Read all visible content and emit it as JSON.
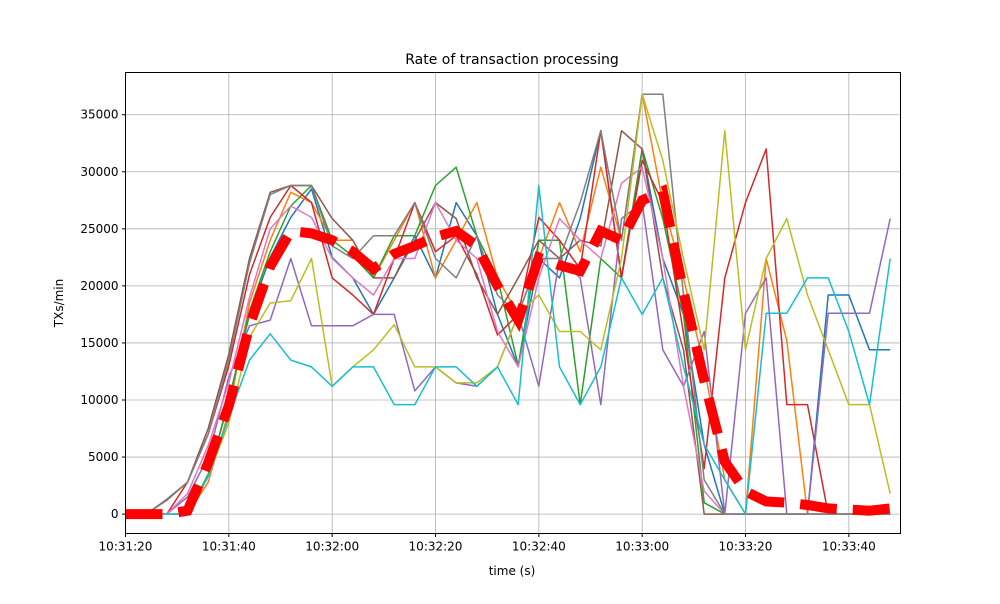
{
  "chart_data": {
    "type": "line",
    "title": "Rate of transaction processing",
    "xlabel": "time (s)",
    "ylabel": "TXs/min",
    "x_start": "10:31:20",
    "x_tick_labels": [
      "10:31:20",
      "10:31:40",
      "10:32:00",
      "10:32:20",
      "10:32:40",
      "10:33:00",
      "10:33:20",
      "10:33:40"
    ],
    "x_tick_seconds": [
      0,
      20,
      40,
      60,
      80,
      100,
      120,
      140
    ],
    "xlim_seconds": [
      0,
      150
    ],
    "y_ticks": [
      0,
      5000,
      10000,
      15000,
      20000,
      25000,
      30000,
      35000
    ],
    "ylim": [
      -1700,
      38700
    ],
    "grid": true,
    "x_seconds": [
      0,
      4,
      8,
      12,
      16,
      20,
      24,
      28,
      32,
      36,
      40,
      44,
      48,
      52,
      56,
      60,
      64,
      68,
      72,
      76,
      80,
      84,
      88,
      92,
      96,
      100,
      104,
      108,
      112,
      116,
      120,
      124,
      128,
      132,
      136,
      140,
      144,
      148
    ],
    "series": [
      {
        "color": "#1f77b4",
        "values": [
          0,
          0,
          0,
          0,
          3300,
          10000,
          17500,
          22500,
          26000,
          28500,
          22500,
          20700,
          17500,
          20700,
          24400,
          20700,
          27300,
          24400,
          17500,
          12900,
          22400,
          20700,
          25900,
          33600,
          20700,
          32000,
          22400,
          17500,
          6100,
          0,
          0,
          0,
          0,
          0,
          19200,
          19200,
          14400,
          14400
        ]
      },
      {
        "color": "#ff7f0e",
        "values": [
          0,
          0,
          0,
          0,
          2800,
          9000,
          18500,
          24000,
          28200,
          27300,
          24000,
          24000,
          20700,
          24000,
          27300,
          20700,
          24000,
          27300,
          20700,
          17500,
          22400,
          27300,
          23000,
          30400,
          24000,
          36800,
          27300,
          20700,
          12900,
          3000,
          0,
          22400,
          15200,
          0,
          0,
          0,
          0,
          0
        ]
      },
      {
        "color": "#2ca02c",
        "values": [
          0,
          0,
          0,
          0,
          3500,
          9800,
          17800,
          23000,
          27000,
          28800,
          24000,
          22600,
          20700,
          24400,
          24400,
          28800,
          30400,
          24400,
          20700,
          13000,
          24000,
          24000,
          9600,
          22400,
          20700,
          32000,
          25900,
          17500,
          1000,
          0,
          0,
          0,
          0,
          0,
          0,
          0,
          0,
          0
        ]
      },
      {
        "color": "#d62728",
        "values": [
          0,
          0,
          0,
          2800,
          7000,
          13000,
          21000,
          26000,
          28800,
          27300,
          20700,
          19200,
          17500,
          22400,
          27300,
          23000,
          24400,
          21000,
          15700,
          17500,
          26000,
          24000,
          21500,
          33600,
          20700,
          31000,
          27300,
          15800,
          4000,
          20700,
          27300,
          32000,
          9600,
          9600,
          0,
          0,
          0,
          0
        ]
      },
      {
        "color": "#9467bd",
        "values": [
          0,
          0,
          0,
          1500,
          5000,
          12000,
          16500,
          17000,
          22400,
          16500,
          16500,
          16500,
          17500,
          17500,
          10800,
          12900,
          11500,
          11200,
          12900,
          17500,
          11200,
          22400,
          20700,
          9600,
          25900,
          27300,
          14400,
          11200,
          16000,
          0,
          17600,
          20700,
          0,
          0,
          17600,
          17600,
          17600,
          25900
        ]
      },
      {
        "color": "#8c564b",
        "values": [
          0,
          0,
          1300,
          2800,
          7500,
          14000,
          22400,
          28200,
          28800,
          28800,
          25900,
          24000,
          20700,
          20700,
          24000,
          27300,
          25900,
          20700,
          17500,
          20700,
          24000,
          22400,
          24000,
          23500,
          33600,
          32000,
          20700,
          14400,
          0,
          0,
          0,
          0,
          0,
          0,
          0,
          0,
          0,
          0
        ]
      },
      {
        "color": "#e377c2",
        "values": [
          0,
          0,
          0,
          1800,
          6000,
          11500,
          19000,
          25000,
          27000,
          26000,
          22400,
          20700,
          19200,
          22400,
          22400,
          27300,
          24000,
          22400,
          16000,
          12900,
          20700,
          25900,
          24000,
          22400,
          29000,
          30400,
          22400,
          11200,
          2000,
          0,
          0,
          0,
          0,
          0,
          0,
          0,
          0,
          0
        ]
      },
      {
        "color": "#7f7f7f",
        "values": [
          0,
          0,
          1200,
          2800,
          7000,
          13500,
          22000,
          28000,
          28800,
          28800,
          23500,
          22400,
          24400,
          24400,
          27300,
          22400,
          20700,
          24400,
          19200,
          17500,
          22400,
          22400,
          27300,
          33600,
          24000,
          36800,
          36800,
          19200,
          3000,
          0,
          0,
          0,
          0,
          0,
          0,
          0,
          0,
          0
        ]
      },
      {
        "color": "#bcbd22",
        "values": [
          0,
          0,
          0,
          0,
          3300,
          8000,
          15500,
          18500,
          18700,
          22400,
          11200,
          12900,
          14400,
          16600,
          12900,
          12900,
          11500,
          11500,
          12900,
          17500,
          19200,
          16000,
          16000,
          14400,
          22400,
          36800,
          31000,
          22400,
          14400,
          33600,
          14400,
          22400,
          25900,
          19200,
          14400,
          9600,
          9600,
          1800
        ]
      },
      {
        "color": "#17becf",
        "values": [
          0,
          0,
          0,
          0,
          3300,
          8500,
          13500,
          15800,
          13500,
          12900,
          11200,
          12900,
          12900,
          9600,
          9600,
          12900,
          12900,
          11200,
          12900,
          9600,
          28800,
          12900,
          9600,
          12900,
          20700,
          17500,
          20700,
          12900,
          6100,
          3000,
          0,
          17600,
          17600,
          20700,
          20700,
          16000,
          9600,
          22400
        ]
      }
    ],
    "mean_series": {
      "color": "#ff0000",
      "style": "dashed",
      "values": [
        0,
        0,
        0,
        300,
        4500,
        9500,
        16500,
        21700,
        24800,
        24600,
        24000,
        23000,
        21500,
        22800,
        23500,
        24300,
        24800,
        23500,
        20000,
        17000,
        22500,
        21800,
        21300,
        24800,
        24000,
        27500,
        28300,
        19500,
        11700,
        4600,
        2000,
        1100,
        1000,
        800,
        500,
        400,
        300,
        500
      ]
    }
  }
}
